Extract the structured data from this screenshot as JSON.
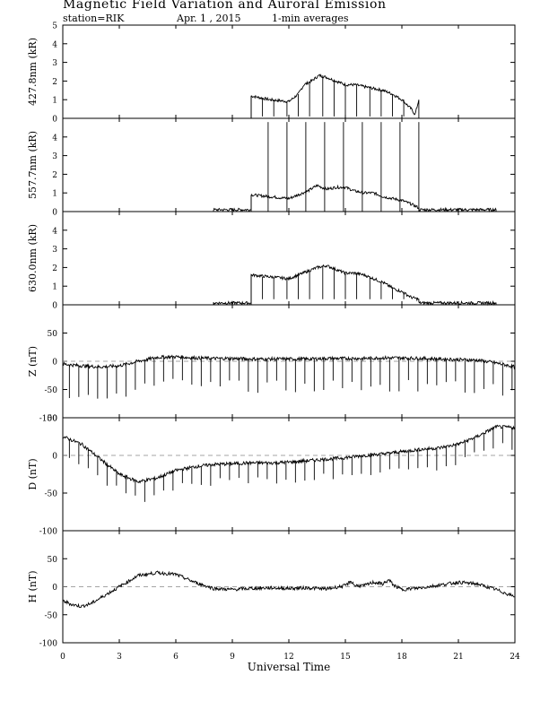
{
  "header": {
    "title": "Magnetic Field Variation and Auroral Emission",
    "station": "station=RIK",
    "date": "Apr. 1 , 2015",
    "averaging": "1-min averages"
  },
  "chart_data": [
    {
      "type": "line",
      "ylabel": "427.8nm (kR)",
      "ylim": [
        0,
        5
      ],
      "yticks": [
        0,
        1,
        2,
        3,
        4,
        5
      ],
      "xlim": [
        0,
        24
      ],
      "zero_line": false,
      "series": [
        {
          "x": [
            0,
            10.0,
            10.0,
            11.0,
            11.5,
            12.0,
            12.5,
            12.8,
            13.2,
            13.6,
            14.0,
            14.5,
            15.0,
            15.5,
            16.0,
            16.5,
            17.0,
            17.5,
            18.0,
            18.5,
            18.7,
            18.9,
            18.9,
            24
          ],
          "y": [
            0,
            0,
            1.2,
            1.0,
            0.95,
            0.9,
            1.3,
            1.8,
            2.0,
            2.3,
            2.2,
            2.0,
            1.8,
            1.8,
            1.7,
            1.6,
            1.5,
            1.3,
            1.0,
            0.5,
            0.2,
            1.0,
            0,
            0
          ]
        }
      ],
      "spikes": [
        {
          "x": 10.0,
          "y1": 1.2,
          "y2": 0
        },
        {
          "x": 10.6,
          "y1": 1.1,
          "y2": 0.1
        },
        {
          "x": 11.2,
          "y1": 1.0,
          "y2": 0.1
        },
        {
          "x": 11.9,
          "y1": 0.9,
          "y2": 0.1
        },
        {
          "x": 12.5,
          "y1": 1.3,
          "y2": 0.1
        },
        {
          "x": 13.1,
          "y1": 1.9,
          "y2": 0.1
        },
        {
          "x": 13.8,
          "y1": 2.3,
          "y2": 0.1
        },
        {
          "x": 14.4,
          "y1": 2.0,
          "y2": 0.1
        },
        {
          "x": 15.0,
          "y1": 1.8,
          "y2": 0.1
        },
        {
          "x": 15.6,
          "y1": 1.8,
          "y2": 0.1
        },
        {
          "x": 16.3,
          "y1": 1.7,
          "y2": 0.1
        },
        {
          "x": 16.9,
          "y1": 1.5,
          "y2": 0.1
        },
        {
          "x": 17.5,
          "y1": 1.3,
          "y2": 0.1
        },
        {
          "x": 18.1,
          "y1": 1.0,
          "y2": 0.1
        }
      ]
    },
    {
      "type": "line",
      "ylabel": "557.7nm (kR)",
      "ylim": [
        0,
        5
      ],
      "yticks": [
        0,
        1,
        2,
        3,
        4
      ],
      "xlim": [
        0,
        24
      ],
      "zero_line": false,
      "series": [
        {
          "x": [
            0,
            8.0,
            8.0,
            10.0,
            10.0,
            11.0,
            12.0,
            12.5,
            13.0,
            13.5,
            14.0,
            14.5,
            15.0,
            15.5,
            16.0,
            16.5,
            17.0,
            17.5,
            18.0,
            18.5,
            18.9,
            18.9,
            23.0,
            23.0,
            24
          ],
          "y": [
            0,
            0,
            0.1,
            0.1,
            0.9,
            0.8,
            0.7,
            0.9,
            1.1,
            1.4,
            1.2,
            1.3,
            1.3,
            1.1,
            1.0,
            1.0,
            0.8,
            0.7,
            0.6,
            0.4,
            0.2,
            0.1,
            0.1,
            0,
            0
          ]
        }
      ],
      "spikes": [
        {
          "x": 10.0,
          "y1": 0.9,
          "y2": 0
        },
        {
          "x": 10.9,
          "y1": 4.8,
          "y2": 0
        },
        {
          "x": 11.9,
          "y1": 4.8,
          "y2": 0
        },
        {
          "x": 12.9,
          "y1": 4.8,
          "y2": 0
        },
        {
          "x": 13.9,
          "y1": 4.8,
          "y2": 0
        },
        {
          "x": 14.9,
          "y1": 4.8,
          "y2": 0
        },
        {
          "x": 15.9,
          "y1": 4.8,
          "y2": 0
        },
        {
          "x": 16.9,
          "y1": 4.8,
          "y2": 0
        },
        {
          "x": 17.9,
          "y1": 4.8,
          "y2": 0
        },
        {
          "x": 18.9,
          "y1": 4.8,
          "y2": 0
        }
      ]
    },
    {
      "type": "line",
      "ylabel": "630.0nm (kR)",
      "ylim": [
        0,
        5
      ],
      "yticks": [
        0,
        1,
        2,
        3,
        4
      ],
      "xlim": [
        0,
        24
      ],
      "zero_line": false,
      "series": [
        {
          "x": [
            0,
            8.0,
            8.0,
            10.0,
            10.0,
            11.0,
            11.5,
            12.0,
            12.5,
            13.0,
            13.5,
            14.0,
            14.5,
            15.0,
            15.5,
            16.0,
            16.5,
            17.0,
            17.5,
            18.0,
            18.5,
            18.9,
            18.9,
            23.0,
            23.0,
            24
          ],
          "y": [
            0,
            0,
            0.1,
            0.1,
            1.6,
            1.5,
            1.45,
            1.4,
            1.6,
            1.8,
            2.0,
            2.1,
            1.9,
            1.7,
            1.7,
            1.6,
            1.4,
            1.2,
            0.9,
            0.7,
            0.4,
            0.3,
            0.1,
            0.1,
            0,
            0
          ]
        }
      ],
      "spikes": [
        {
          "x": 10.0,
          "y1": 1.6,
          "y2": 0
        },
        {
          "x": 10.6,
          "y1": 1.5,
          "y2": 0.3
        },
        {
          "x": 11.2,
          "y1": 1.4,
          "y2": 0.3
        },
        {
          "x": 11.9,
          "y1": 1.4,
          "y2": 0.3
        },
        {
          "x": 12.5,
          "y1": 1.6,
          "y2": 0.3
        },
        {
          "x": 13.1,
          "y1": 1.8,
          "y2": 0.3
        },
        {
          "x": 13.8,
          "y1": 2.1,
          "y2": 0.3
        },
        {
          "x": 14.4,
          "y1": 1.9,
          "y2": 0.3
        },
        {
          "x": 15.0,
          "y1": 1.7,
          "y2": 0.3
        },
        {
          "x": 15.6,
          "y1": 1.7,
          "y2": 0.3
        },
        {
          "x": 16.3,
          "y1": 1.5,
          "y2": 0.3
        },
        {
          "x": 16.9,
          "y1": 1.2,
          "y2": 0.3
        },
        {
          "x": 17.5,
          "y1": 0.9,
          "y2": 0.3
        },
        {
          "x": 18.1,
          "y1": 0.7,
          "y2": 0.3
        }
      ]
    },
    {
      "type": "line",
      "ylabel": "Z (nT)",
      "ylim": [
        -100,
        100
      ],
      "yticks": [
        -100,
        -50,
        0,
        50
      ],
      "xlim": [
        0,
        24
      ],
      "zero_line": true,
      "series": [
        {
          "x": [
            0,
            1,
            2,
            3,
            4,
            5,
            6,
            7,
            8,
            9,
            10,
            11,
            12,
            13,
            14,
            15,
            16,
            17,
            18,
            19,
            20,
            21,
            22,
            23,
            24
          ],
          "y": [
            -5,
            -8,
            -10,
            -8,
            0,
            7,
            8,
            6,
            5,
            5,
            4,
            4,
            4,
            4,
            5,
            5,
            5,
            6,
            6,
            5,
            4,
            3,
            2,
            -3,
            -10
          ]
        }
      ],
      "spikes_every_hours": 0.5,
      "spike_depth_nT": [
        38,
        60
      ]
    },
    {
      "type": "line",
      "ylabel": "D (nT)",
      "ylim": [
        -100,
        50
      ],
      "yticks": [
        -100,
        -50,
        0,
        50
      ],
      "xlim": [
        0,
        24
      ],
      "zero_line": true,
      "series": [
        {
          "x": [
            0,
            1,
            2,
            3,
            4,
            5,
            6,
            7,
            8,
            9,
            10,
            11,
            12,
            13,
            14,
            15,
            16,
            17,
            18,
            19,
            20,
            21,
            22,
            23,
            24
          ],
          "y": [
            25,
            15,
            -5,
            -25,
            -35,
            -30,
            -20,
            -15,
            -12,
            -11,
            -10,
            -10,
            -9,
            -7,
            -5,
            -3,
            0,
            2,
            5,
            8,
            10,
            15,
            25,
            38,
            37
          ]
        }
      ],
      "spikes_every_hours": 0.5,
      "spike_depth_nT": [
        18,
        30
      ]
    },
    {
      "type": "line",
      "ylabel": "H (nT)",
      "ylim": [
        -100,
        100
      ],
      "yticks": [
        -100,
        -50,
        0,
        50
      ],
      "xlim": [
        0,
        24
      ],
      "zero_line": true,
      "series": [
        {
          "x": [
            0,
            0.5,
            1,
            1.5,
            2,
            3,
            4,
            5,
            6,
            7,
            8,
            9,
            10,
            11,
            12,
            13,
            14,
            15,
            15.3,
            15.5,
            16,
            16.5,
            17,
            17.3,
            17.6,
            18,
            19,
            20,
            21,
            22,
            23,
            24
          ],
          "y": [
            -25,
            -32,
            -35,
            -30,
            -20,
            0,
            20,
            25,
            22,
            8,
            -3,
            -5,
            -3,
            -2,
            -3,
            -2,
            -4,
            2,
            10,
            2,
            2,
            8,
            5,
            12,
            2,
            -5,
            -2,
            3,
            8,
            5,
            -5,
            -18
          ]
        }
      ],
      "spikes_every_hours": 0,
      "spike_depth_nT": [
        0,
        0
      ]
    }
  ],
  "xaxis": {
    "label": "Universal Time",
    "ticks": [
      0,
      3,
      6,
      9,
      12,
      15,
      18,
      21,
      24
    ],
    "range": [
      0,
      24
    ]
  }
}
